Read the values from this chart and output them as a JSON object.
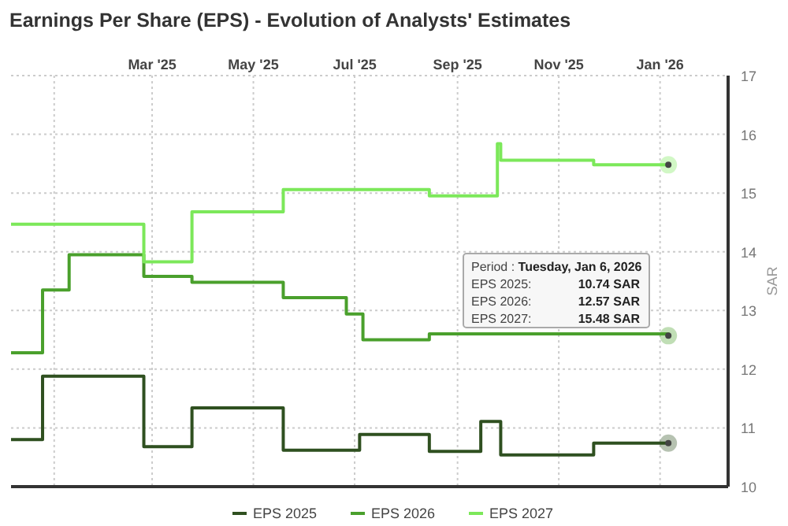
{
  "chart_data": {
    "type": "step",
    "title": "Earnings Per Share (EPS) - Evolution of Analysts' Estimates",
    "ylabel": "SAR",
    "xlim": [
      "2024-12-06",
      "2026-02-11"
    ],
    "xticks": [
      {
        "value": "2025-01-01",
        "label": null
      },
      {
        "value": "2025-03-01",
        "label": "Mar '25"
      },
      {
        "value": "2025-05-01",
        "label": "May '25"
      },
      {
        "value": "2025-07-01",
        "label": "Jul '25"
      },
      {
        "value": "2025-09-01",
        "label": "Sep '25"
      },
      {
        "value": "2025-11-01",
        "label": "Nov '25"
      },
      {
        "value": "2026-01-01",
        "label": "Jan '26"
      }
    ],
    "ylim": [
      10,
      17
    ],
    "yticks": [
      10,
      11,
      12,
      13,
      14,
      15,
      16,
      17
    ],
    "grid": true,
    "legend": "bottom",
    "marker": "none",
    "line_style": "solid",
    "series": [
      {
        "name": "EPS 2025",
        "color": "#2f5020",
        "x": [
          "2024-12-06",
          "2024-12-25",
          "2025-02-24",
          "2025-03-25",
          "2025-05-19",
          "2025-07-04",
          "2025-08-15",
          "2025-09-15",
          "2025-09-27",
          "2025-11-22",
          "2026-01-06"
        ],
        "values": [
          10.8,
          11.88,
          10.68,
          11.34,
          10.62,
          10.89,
          10.6,
          11.11,
          10.54,
          10.74,
          10.74
        ]
      },
      {
        "name": "EPS 2026",
        "color": "#4aa02c",
        "x": [
          "2024-12-06",
          "2024-12-25",
          "2025-01-10",
          "2025-02-24",
          "2025-03-25",
          "2025-05-19",
          "2025-06-26",
          "2025-07-06",
          "2025-08-15",
          "2026-01-06"
        ],
        "values": [
          12.28,
          13.35,
          13.95,
          13.58,
          13.48,
          13.22,
          12.94,
          12.5,
          12.6,
          12.57
        ]
      },
      {
        "name": "EPS 2027",
        "color": "#7ce85a",
        "x": [
          "2024-12-06",
          "2025-02-24",
          "2025-03-25",
          "2025-05-19",
          "2025-08-15",
          "2025-09-25",
          "2025-09-27",
          "2025-11-22",
          "2026-01-06"
        ],
        "values": [
          14.47,
          13.83,
          14.68,
          15.06,
          14.95,
          15.84,
          15.56,
          15.48,
          15.48
        ]
      }
    ],
    "annotations": [
      "Period : Tuesday, Jan 6, 2026",
      "EPS 2025: 10.74 SAR",
      "EPS 2026: 12.57 SAR",
      "EPS 2027: 15.48 SAR"
    ]
  }
}
